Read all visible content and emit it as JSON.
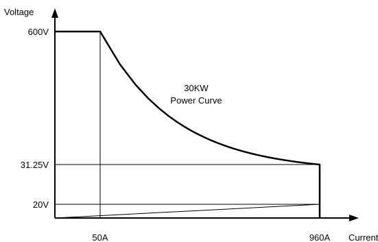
{
  "chart_data": {
    "type": "line",
    "title": "",
    "annotation_lines": [
      "30KW",
      "Power Curve"
    ],
    "xlabel": "Current",
    "ylabel": "Voltage",
    "x_ticks": [
      {
        "value": 50,
        "label": "50A"
      },
      {
        "value": 960,
        "label": "960A"
      }
    ],
    "y_ticks": [
      {
        "value": 600,
        "label": "600V"
      },
      {
        "value": 31.25,
        "label": "31.25V"
      },
      {
        "value": 20,
        "label": "20V"
      }
    ],
    "grid": false,
    "series": [
      {
        "role": "power-envelope",
        "x": [
          0,
          50,
          960,
          960
        ],
        "y": [
          600,
          600,
          31.25,
          0
        ]
      }
    ],
    "reference_lines": [
      {
        "role": "50a-vertical",
        "points": [
          [
            50,
            0
          ],
          [
            50,
            600
          ]
        ]
      },
      {
        "role": "31v-horizontal",
        "points": [
          [
            0,
            31.25
          ],
          [
            960,
            31.25
          ]
        ]
      },
      {
        "role": "20v-horizontal",
        "points": [
          [
            0,
            20
          ],
          [
            960,
            20
          ]
        ]
      },
      {
        "role": "min-diagonal",
        "points": [
          [
            0,
            0
          ],
          [
            960,
            20
          ]
        ]
      }
    ],
    "power_kw": 30
  }
}
